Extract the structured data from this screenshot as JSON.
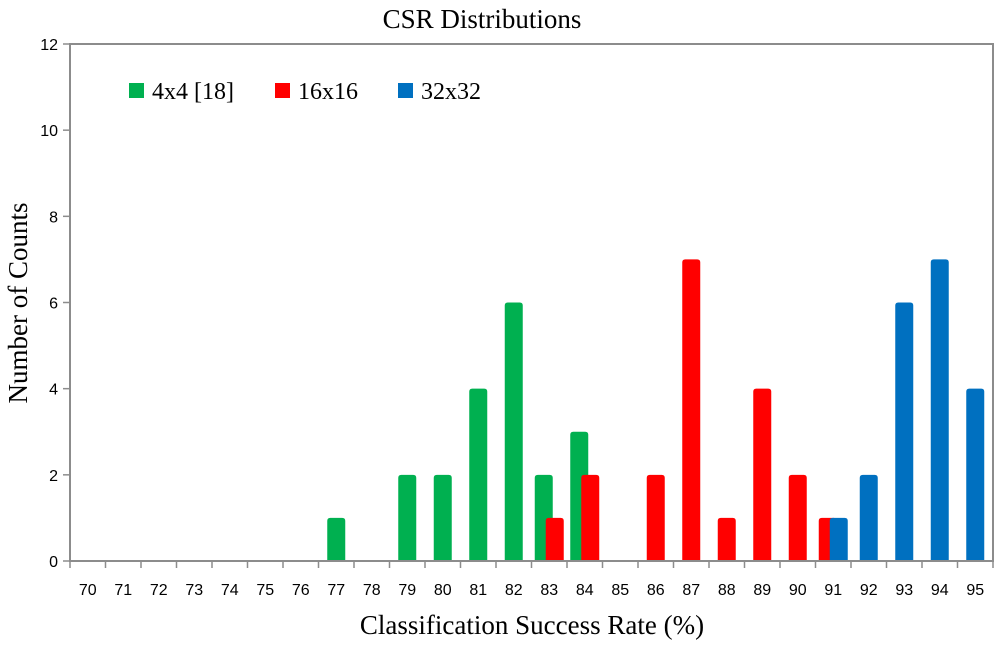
{
  "chart_data": {
    "type": "bar",
    "title": "CSR Distributions",
    "xlabel": "Classification Success Rate (%)",
    "ylabel": "Number of  Counts",
    "categories": [
      "70",
      "71",
      "72",
      "73",
      "74",
      "75",
      "76",
      "77",
      "78",
      "79",
      "80",
      "81",
      "82",
      "83",
      "84",
      "85",
      "86",
      "87",
      "88",
      "89",
      "90",
      "91",
      "92",
      "93",
      "94",
      "95"
    ],
    "ylim": [
      0,
      12
    ],
    "yticks": [
      0,
      2,
      4,
      6,
      8,
      10,
      12
    ],
    "legend_position": "top-left",
    "series": [
      {
        "name": "4x4 [18]",
        "color": "#00B050",
        "values": [
          0,
          0,
          0,
          0,
          0,
          0,
          0,
          1,
          0,
          2,
          2,
          4,
          6,
          2,
          3,
          0,
          0,
          0,
          0,
          0,
          0,
          0,
          0,
          0,
          0,
          0
        ]
      },
      {
        "name": "16x16",
        "color": "#FF0000",
        "values": [
          0,
          0,
          0,
          0,
          0,
          0,
          0,
          0,
          0,
          0,
          0,
          0,
          0,
          1,
          2,
          0,
          2,
          7,
          1,
          4,
          2,
          1,
          0,
          0,
          0,
          0
        ]
      },
      {
        "name": "32x32",
        "color": "#0070C0",
        "values": [
          0,
          0,
          0,
          0,
          0,
          0,
          0,
          0,
          0,
          0,
          0,
          0,
          0,
          0,
          0,
          0,
          0,
          0,
          0,
          0,
          0,
          1,
          2,
          6,
          7,
          4
        ]
      }
    ]
  }
}
